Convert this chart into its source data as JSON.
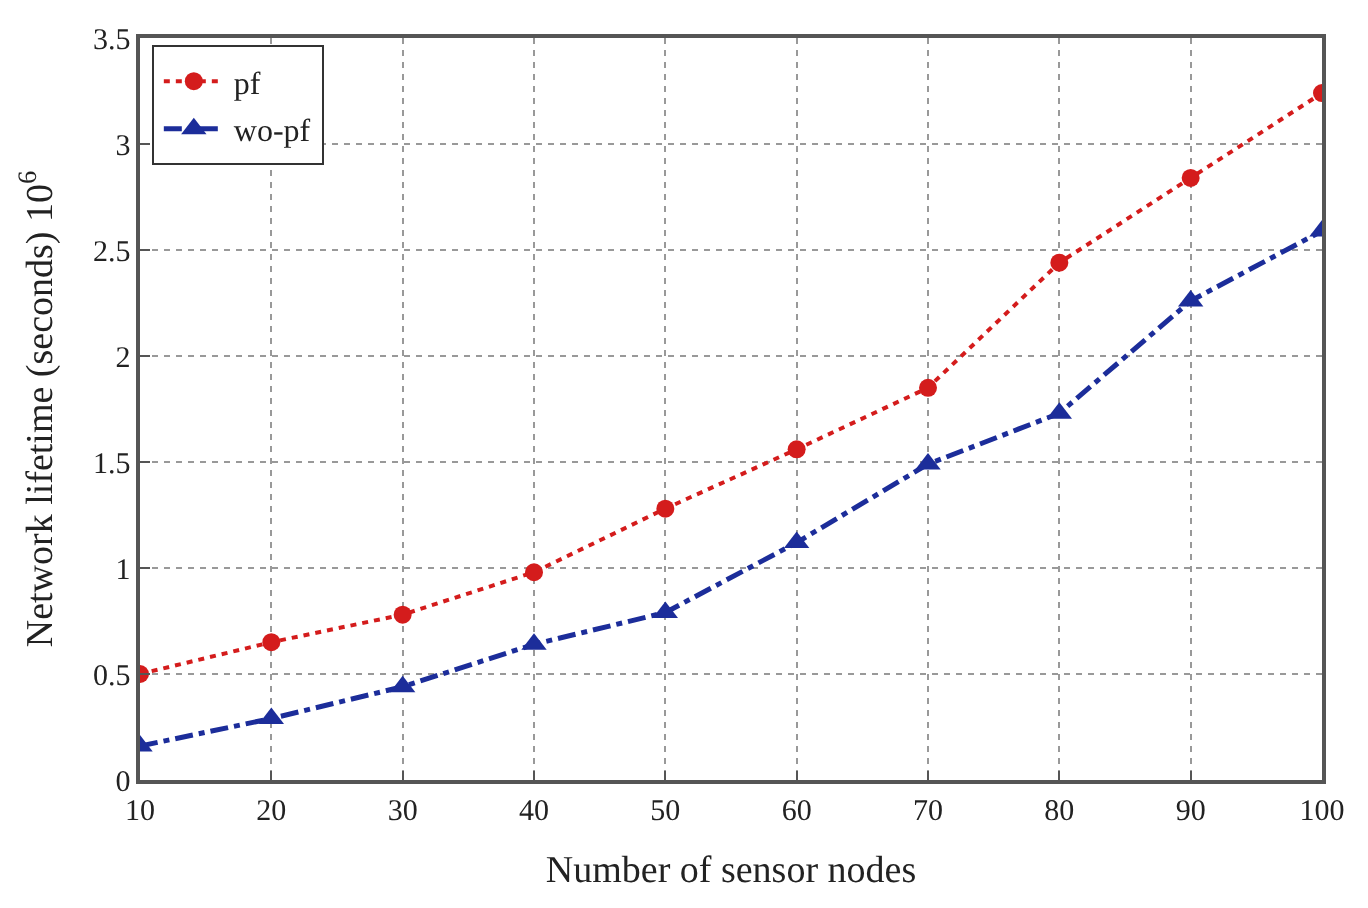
{
  "chart_data": {
    "type": "line",
    "xlabel": "Number of sensor nodes",
    "ylabel": "Network lifetime (seconds) 10$^{6}$",
    "x": [
      10,
      20,
      30,
      40,
      50,
      60,
      70,
      80,
      90,
      100
    ],
    "series": [
      {
        "name": "pf",
        "color": "#d41c1c",
        "marker": "circle",
        "line_style": "dotted",
        "values": [
          0.5,
          0.65,
          0.78,
          0.98,
          1.28,
          1.56,
          1.85,
          2.44,
          2.84,
          3.24
        ]
      },
      {
        "name": "wo-pf",
        "color": "#1c2d9a",
        "marker": "triangle",
        "line_style": "dashdot",
        "values": [
          0.16,
          0.29,
          0.44,
          0.64,
          0.79,
          1.12,
          1.49,
          1.73,
          2.26,
          2.59
        ]
      }
    ],
    "xlim": [
      10,
      100
    ],
    "xticks": [
      10,
      20,
      30,
      40,
      50,
      60,
      70,
      80,
      90,
      100
    ],
    "ylim": [
      0,
      3.5
    ],
    "yticks": [
      0,
      0.5,
      1,
      1.5,
      2,
      2.5,
      3,
      3.5
    ],
    "grid": true,
    "legend": "top left"
  }
}
